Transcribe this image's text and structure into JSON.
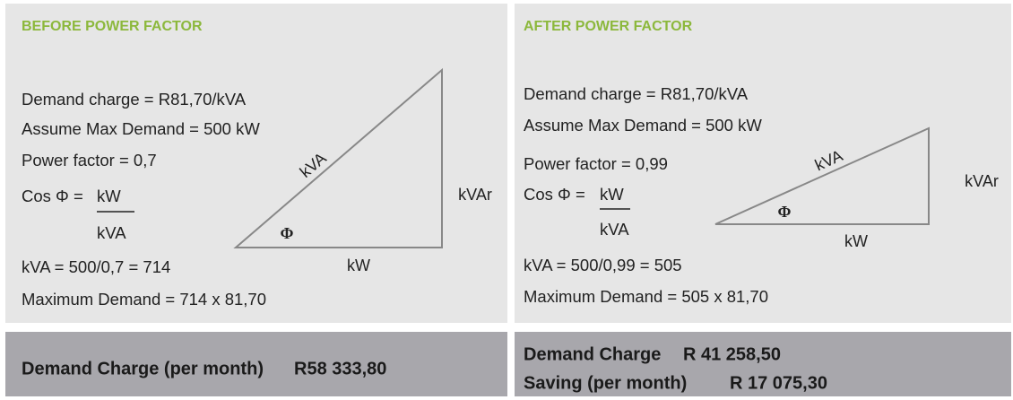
{
  "panels": [
    {
      "title": "BEFORE POWER FACTOR",
      "lines": [
        "Demand charge = R81,70/kVA",
        "Assume Max Demand = 500 kW",
        "Power factor = 0,7"
      ],
      "cos_label": "Cos Φ =",
      "fraction": {
        "numerator": "kW",
        "denominator": "kVA"
      },
      "results": [
        "kVA = 500/0,7 = 714",
        "Maximum Demand = 714 x 81,70"
      ],
      "triangle": {
        "hypotenuse": "kVA",
        "vertical": "kVAr",
        "base": "kW",
        "angle": "Φ"
      },
      "footer": [
        {
          "label": "Demand Charge (per month)",
          "amount": "R58 333,80"
        }
      ]
    },
    {
      "title": "AFTER POWER FACTOR",
      "lines": [
        "Demand charge = R81,70/kVA",
        "Assume Max Demand = 500 kW",
        "Power factor = 0,99"
      ],
      "cos_label": "Cos Φ =",
      "fraction": {
        "numerator": "kW",
        "denominator": "kVA"
      },
      "results": [
        "kVA = 500/0,99 = 505",
        "Maximum Demand = 505 x 81,70"
      ],
      "triangle": {
        "hypotenuse": "kVA",
        "vertical": "kVAr",
        "base": "kW",
        "angle": "Φ"
      },
      "footer": [
        {
          "label": "Demand Charge",
          "amount": "R 41 258,50"
        },
        {
          "label": "Saving (per month)",
          "amount": "R 17 075,30"
        }
      ]
    }
  ]
}
